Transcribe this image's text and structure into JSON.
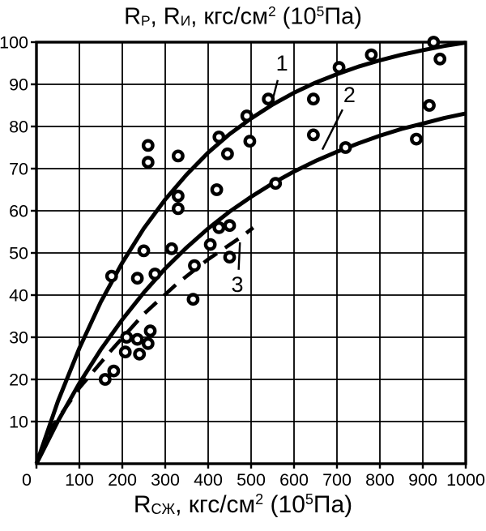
{
  "title_segments": [
    {
      "t": "R"
    },
    {
      "t": "Р",
      "sub": true
    },
    {
      "t": ", R"
    },
    {
      "t": "И",
      "sub": true
    },
    {
      "t": ", кгс/см"
    },
    {
      "t": "2",
      "sup": true
    },
    {
      "t": " (10"
    },
    {
      "t": "5",
      "sup": true
    },
    {
      "t": "Па)"
    }
  ],
  "xlabel_segments": [
    {
      "t": "R"
    },
    {
      "t": "СЖ",
      "sub": true
    },
    {
      "t": ", кгс/см"
    },
    {
      "t": "2",
      "sup": true
    },
    {
      "t": " (10"
    },
    {
      "t": "5",
      "sup": true
    },
    {
      "t": "Па)"
    }
  ],
  "chart_data": {
    "type": "scatter",
    "title": "Rр, Rи, кгс/см2 (10^5 Па)",
    "xlabel": "Rсж, кгс/см2 (10^5 Па)",
    "xlim": [
      0,
      1000
    ],
    "ylim": [
      0,
      100
    ],
    "x_ticks": [
      0,
      100,
      200,
      300,
      400,
      500,
      600,
      700,
      800,
      900,
      1000
    ],
    "y_ticks": [
      10,
      20,
      30,
      40,
      50,
      60,
      70,
      80,
      90,
      100
    ],
    "grid": true,
    "marker": "open-circle",
    "colors": {
      "ink": "#000000",
      "paper": "#ffffff"
    },
    "points": [
      [
        160,
        20
      ],
      [
        175,
        44.5
      ],
      [
        180,
        22
      ],
      [
        207,
        26.5
      ],
      [
        210,
        30
      ],
      [
        235,
        29.5
      ],
      [
        235,
        44
      ],
      [
        240,
        26
      ],
      [
        250,
        50.5
      ],
      [
        260,
        28.5
      ],
      [
        260,
        71.5
      ],
      [
        260,
        75.5
      ],
      [
        265,
        31.5
      ],
      [
        276,
        45
      ],
      [
        315,
        51
      ],
      [
        330,
        60.5
      ],
      [
        330,
        63.5
      ],
      [
        330,
        73
      ],
      [
        365,
        39
      ],
      [
        368,
        47
      ],
      [
        405,
        52
      ],
      [
        420,
        65
      ],
      [
        425,
        56
      ],
      [
        425,
        77.5
      ],
      [
        445,
        73.5
      ],
      [
        450,
        49
      ],
      [
        450,
        56.5
      ],
      [
        490,
        82.5
      ],
      [
        497,
        76.5
      ],
      [
        540,
        86.5
      ],
      [
        557,
        66.5
      ],
      [
        645,
        78
      ],
      [
        645,
        86.5
      ],
      [
        705,
        94
      ],
      [
        720,
        75
      ],
      [
        780,
        97
      ],
      [
        885,
        77
      ],
      [
        915,
        85
      ],
      [
        925,
        100
      ],
      [
        940,
        96
      ]
    ],
    "curves": [
      {
        "name": "1",
        "style": "solid",
        "points": [
          [
            0,
            0
          ],
          [
            50,
            14.8
          ],
          [
            100,
            27.4
          ],
          [
            150,
            38.4
          ],
          [
            200,
            47.7
          ],
          [
            250,
            55.8
          ],
          [
            300,
            62.7
          ],
          [
            350,
            68.6
          ],
          [
            400,
            73.8
          ],
          [
            450,
            78.2
          ],
          [
            500,
            81.9
          ],
          [
            550,
            85.2
          ],
          [
            600,
            88.0
          ],
          [
            650,
            90.4
          ],
          [
            700,
            92.4
          ],
          [
            750,
            94.2
          ],
          [
            800,
            95.7
          ],
          [
            850,
            97.0
          ],
          [
            900,
            98.1
          ],
          [
            950,
            99.1
          ],
          [
            1000,
            99.9
          ]
        ]
      },
      {
        "name": "2",
        "style": "solid",
        "points": [
          [
            0,
            0
          ],
          [
            50,
            10.1
          ],
          [
            100,
            19.1
          ],
          [
            150,
            27.1
          ],
          [
            200,
            34.2
          ],
          [
            250,
            40.6
          ],
          [
            300,
            46.3
          ],
          [
            350,
            51.3
          ],
          [
            400,
            55.8
          ],
          [
            450,
            59.8
          ],
          [
            500,
            63.3
          ],
          [
            550,
            66.5
          ],
          [
            600,
            69.3
          ],
          [
            650,
            71.8
          ],
          [
            700,
            74.0
          ],
          [
            750,
            76.0
          ],
          [
            800,
            77.8
          ],
          [
            850,
            79.4
          ],
          [
            900,
            80.7
          ],
          [
            950,
            82.0
          ],
          [
            1000,
            83.1
          ]
        ]
      },
      {
        "name": "3",
        "style": "dashed",
        "points": [
          [
            25,
            7
          ],
          [
            100,
            18
          ],
          [
            175,
            27
          ],
          [
            250,
            35.5
          ],
          [
            325,
            42.5
          ],
          [
            400,
            48.5
          ],
          [
            480,
            54
          ],
          [
            505,
            56
          ]
        ]
      }
    ],
    "curve_labels": [
      {
        "text": "1",
        "x": 572,
        "y": 95,
        "leader": [
          [
            562,
            91
          ],
          [
            548,
            85.5
          ]
        ]
      },
      {
        "text": "2",
        "x": 729,
        "y": 87.5,
        "leader": [
          [
            713,
            84
          ],
          [
            666,
            74.5
          ]
        ]
      },
      {
        "text": "3",
        "x": 468,
        "y": 42.5,
        "leader": [
          [
            471,
            46
          ],
          [
            474,
            52.5
          ]
        ]
      }
    ],
    "legend_position": "none"
  }
}
